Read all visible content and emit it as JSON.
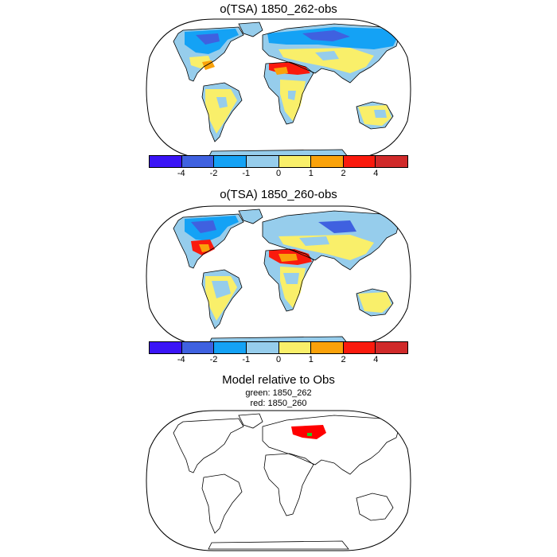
{
  "panels": [
    {
      "title": "o(TSA) 1850_262-obs"
    },
    {
      "title": "o(TSA) 1850_260-obs"
    },
    {
      "title": "Model relative to Obs",
      "legend_green": "green: 1850_262",
      "legend_red": "red: 1850_260"
    }
  ],
  "colorbar": {
    "colors": [
      "#3a14f6",
      "#3f61e0",
      "#14a2f5",
      "#96cdec",
      "#f9ef6a",
      "#faa20a",
      "#fa1a0d",
      "#d02a2a"
    ],
    "ticks": [
      "-4",
      "-2",
      "-1",
      "0",
      "1",
      "2",
      "4"
    ]
  },
  "colors": {
    "better_262": "#22cc22",
    "better_260": "#ff0000"
  }
}
